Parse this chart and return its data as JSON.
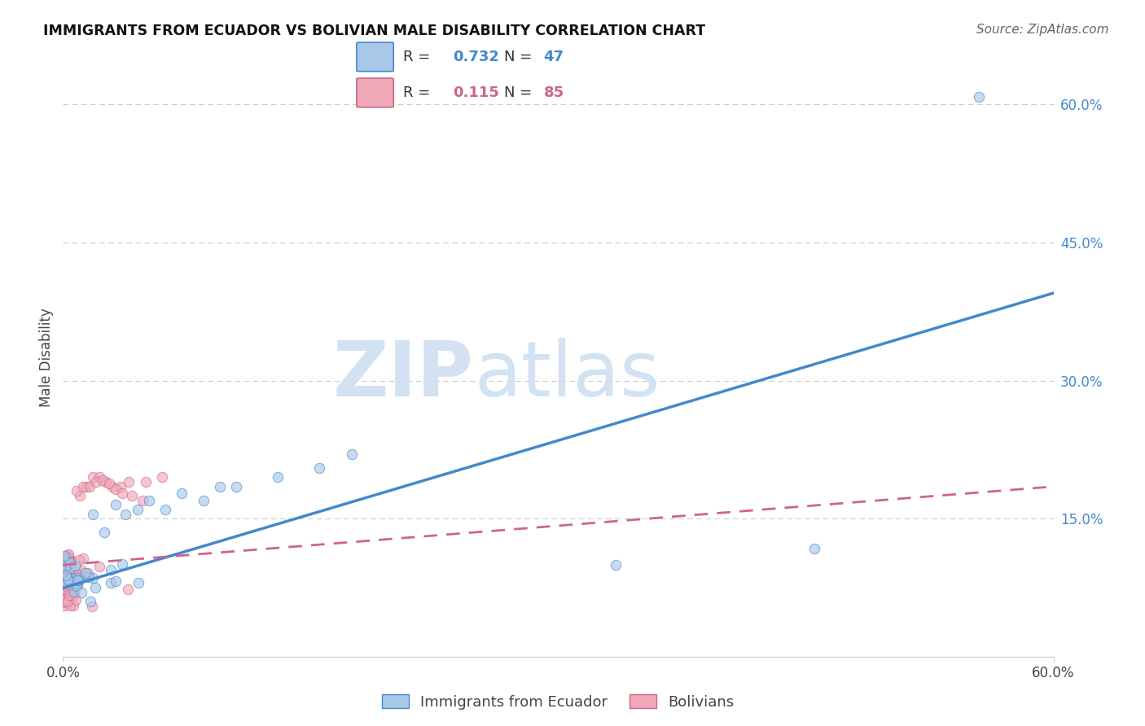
{
  "title": "IMMIGRANTS FROM ECUADOR VS BOLIVIAN MALE DISABILITY CORRELATION CHART",
  "source": "Source: ZipAtlas.com",
  "ylabel": "Male Disability",
  "xlim": [
    0.0,
    0.6
  ],
  "ylim": [
    0.0,
    0.65
  ],
  "ytick_vals": [
    0.0,
    0.15,
    0.3,
    0.45,
    0.6
  ],
  "ytick_labels": [
    "",
    "15.0%",
    "30.0%",
    "45.0%",
    "60.0%"
  ],
  "xtick_vals": [
    0.0,
    0.6
  ],
  "xtick_labels": [
    "0.0%",
    "60.0%"
  ],
  "color_ecuador": "#a8c8e8",
  "color_bolivian": "#f0a8b8",
  "line_ecuador_color": "#4488cc",
  "line_bolivian_color": "#cc6688",
  "ecu_trendline_x0": 0.0,
  "ecu_trendline_y0": 0.075,
  "ecu_trendline_x1": 0.6,
  "ecu_trendline_y1": 0.395,
  "bol_trendline_x0": 0.0,
  "bol_trendline_y0": 0.1,
  "bol_trendline_x1": 0.6,
  "bol_trendline_y1": 0.185,
  "watermark_zip": "ZIP",
  "watermark_atlas": "atlas",
  "legend_r1": "R = ",
  "legend_v1": "0.732",
  "legend_n1_label": "N = ",
  "legend_n1_val": "47",
  "legend_r2": "R =  ",
  "legend_v2": "0.115",
  "legend_n2_label": "N = ",
  "legend_n2_val": "85",
  "scatter_size": 80,
  "scatter_alpha": 0.65,
  "scatter_lw": 0.7,
  "grid_color": "#cccccc",
  "grid_lw": 0.8,
  "title_fontsize": 12.5,
  "source_fontsize": 11,
  "tick_fontsize": 12,
  "legend_fontsize": 13,
  "ylabel_fontsize": 12
}
